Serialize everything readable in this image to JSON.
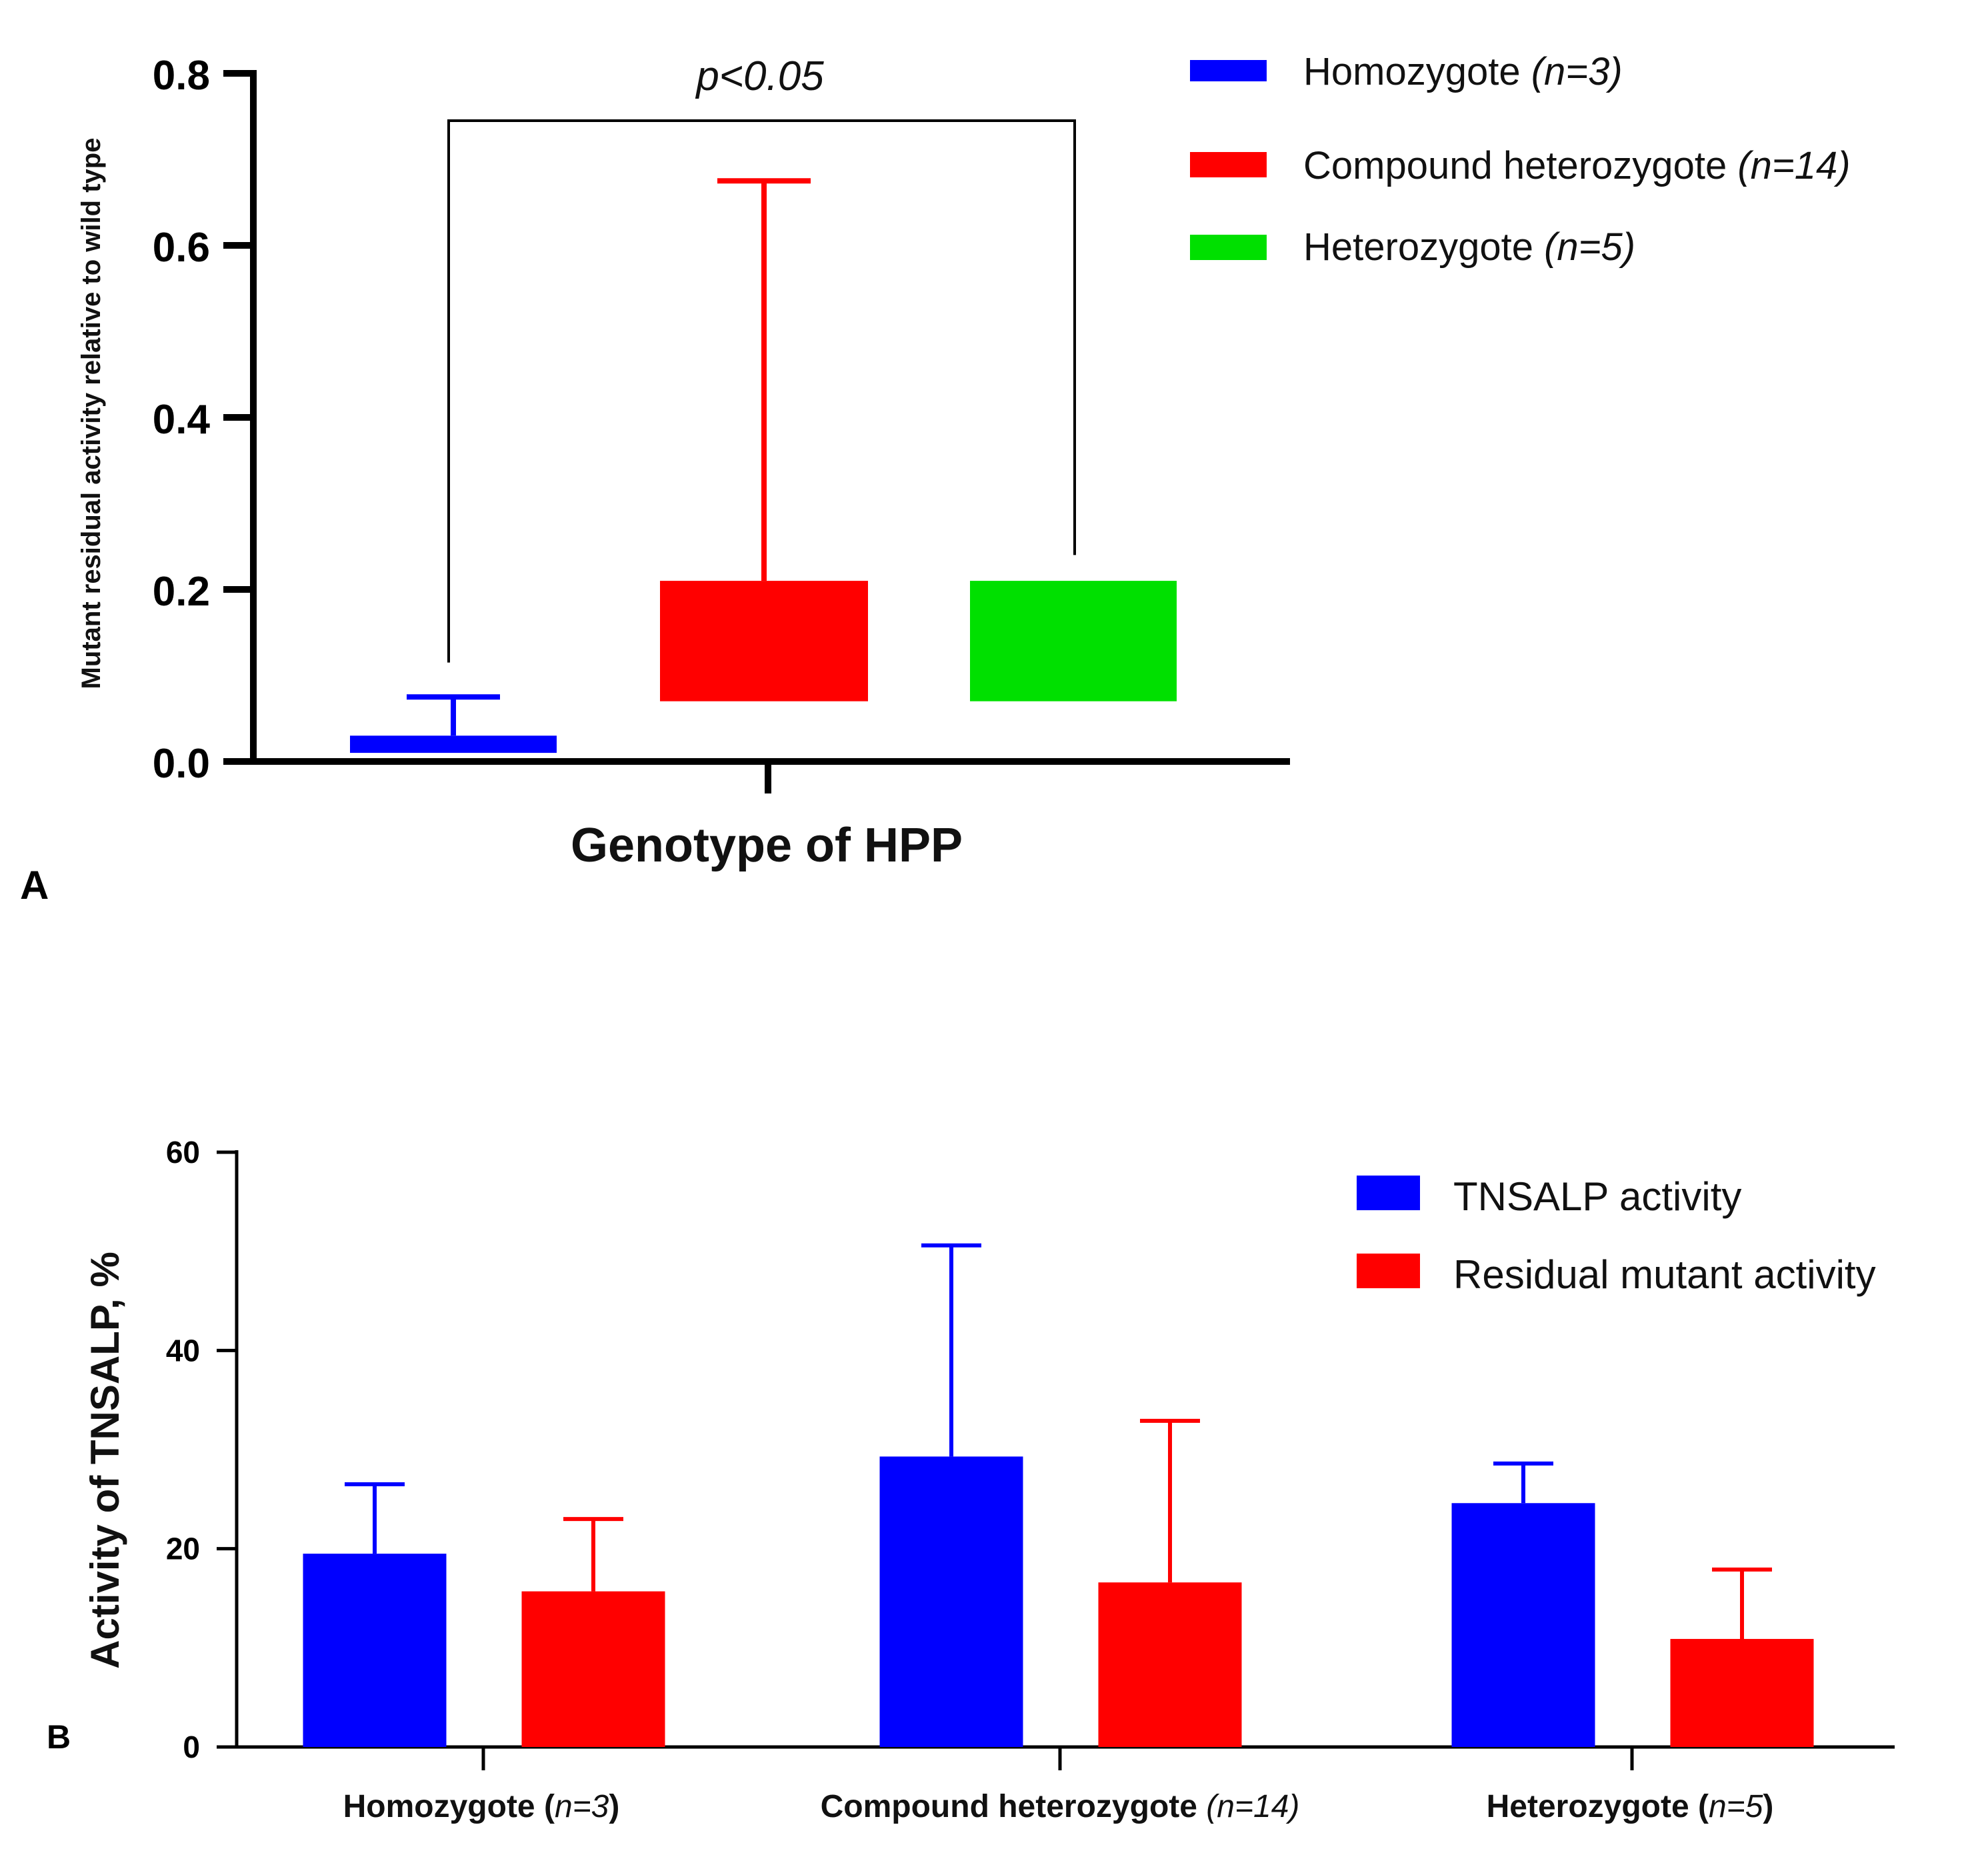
{
  "panel_labels": {
    "a": "A",
    "b": "B"
  },
  "chart_data": [
    {
      "panel": "A",
      "type": "floating-bar",
      "title": "",
      "xlabel": "Genotype of HPP",
      "ylabel": "Mutant residual activity relative to wild type",
      "ylim": [
        0,
        0.8
      ],
      "yticks": [
        "0.0",
        "0.2",
        "0.4",
        "0.6",
        "0.8"
      ],
      "ytick_values": [
        0,
        0.2,
        0.4,
        0.6,
        0.8
      ],
      "legend_position": "top-right",
      "series": [
        {
          "name": "Homozygote",
          "n_label": "(n=3)",
          "color": "#0000ff",
          "low": 0.01,
          "high": 0.03,
          "err_high": 0.075
        },
        {
          "name": "Compound heterozygote",
          "n_label": "(n=14)",
          "color": "#ff0000",
          "low": 0.07,
          "high": 0.21,
          "err_high": 0.675
        },
        {
          "name": "Heterozygote",
          "n_label": "(n=5)",
          "color": "#00e000",
          "low": 0.07,
          "high": 0.21,
          "err_high": null
        }
      ],
      "annotation": {
        "text": "p<0.05",
        "from": "Homozygote",
        "to": "Heterozygote",
        "y": 0.745
      }
    },
    {
      "panel": "B",
      "type": "bar",
      "title": "",
      "xlabel": "",
      "ylabel": "Activity of TNSALP, %",
      "ylim": [
        0,
        60
      ],
      "yticks": [
        "0",
        "20",
        "40",
        "60"
      ],
      "ytick_values": [
        0,
        20,
        40,
        60
      ],
      "legend_position": "top-right",
      "categories": [
        {
          "name": "Homozygote (",
          "n": "n=3",
          "close": ")"
        },
        {
          "name": "Compound heterozygote",
          "n": "(n=14)",
          "close": ""
        },
        {
          "name": "Heterozygote (",
          "n": "n=5",
          "close": ")"
        }
      ],
      "series": [
        {
          "name": "TNSALP activity",
          "color": "#0000ff",
          "values": [
            19.5,
            29.3,
            24.6
          ],
          "errors": [
            7.0,
            21.3,
            4.0
          ]
        },
        {
          "name": "Residual mutant activity",
          "color": "#ff0000",
          "values": [
            15.7,
            16.6,
            10.9
          ],
          "errors": [
            7.3,
            16.3,
            7.0
          ]
        }
      ]
    }
  ]
}
